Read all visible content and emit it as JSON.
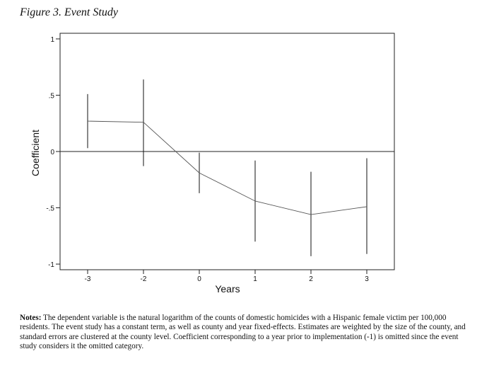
{
  "figure": {
    "title": "Figure 3. Event Study"
  },
  "notes": {
    "label": "Notes:",
    "text": " The dependent variable is the natural logarithm of the counts of domestic homicides with a Hispanic female victim per 100,000 residents. The event study has a constant term, as well as county and year fixed-effects. Estimates are weighted by the size of the county, and standard errors are clustered at the county level. Coefficient corresponding to a year prior to implementation (-1) is omitted since the event study considers it the omitted category."
  },
  "chart_data": {
    "type": "line",
    "title": "",
    "xlabel": "Years",
    "ylabel": "Coefficient",
    "categories": [
      "-3",
      "-2",
      "0",
      "1",
      "2",
      "3"
    ],
    "yticks": [
      1,
      0.5,
      0,
      -0.5,
      -1
    ],
    "ytick_labels": [
      "1",
      ".5",
      "0",
      "-.5",
      "-1"
    ],
    "ylim": [
      -1.05,
      1.05
    ],
    "reference_line": 0,
    "grid": false,
    "line_color": "#555555",
    "series": [
      {
        "values": [
          0.27,
          0.26,
          -0.19,
          -0.44,
          -0.56,
          -0.49
        ],
        "ci_lower": [
          0.03,
          -0.13,
          -0.37,
          -0.8,
          -0.93,
          -0.91
        ],
        "ci_upper": [
          0.51,
          0.64,
          -0.01,
          -0.08,
          -0.18,
          -0.06
        ]
      }
    ]
  }
}
